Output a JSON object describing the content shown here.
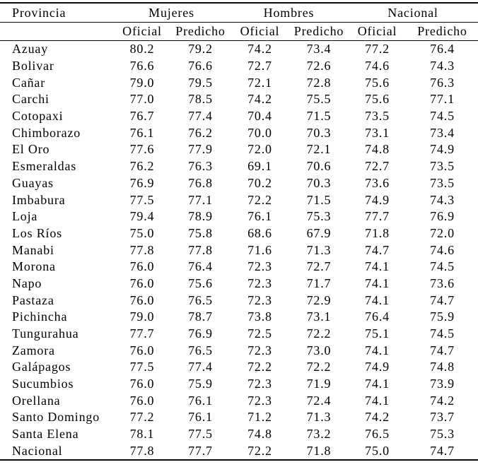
{
  "colors": {
    "background": "#ffffff",
    "text": "#000000",
    "rule": "#0a0a0a"
  },
  "table": {
    "corner_header": "Provincia",
    "groups": [
      "Mujeres",
      "Hombres",
      "Nacional"
    ],
    "subheaders": [
      "Oficial",
      "Predicho",
      "Oficial",
      "Predicho",
      "Oficial",
      "Predicho"
    ],
    "rows": [
      {
        "provincia": "Azuay",
        "values": [
          "80.2",
          "79.2",
          "74.2",
          "73.4",
          "77.2",
          "76.4"
        ]
      },
      {
        "provincia": "Bolivar",
        "values": [
          "76.6",
          "76.6",
          "72.7",
          "72.6",
          "74.6",
          "74.3"
        ]
      },
      {
        "provincia": "Cañar",
        "values": [
          "79.0",
          "79.5",
          "72.1",
          "72.8",
          "75.6",
          "76.3"
        ]
      },
      {
        "provincia": "Carchi",
        "values": [
          "77.0",
          "78.5",
          "74.2",
          "75.5",
          "75.6",
          "77.1"
        ]
      },
      {
        "provincia": "Cotopaxi",
        "values": [
          "76.7",
          "77.4",
          "70.4",
          "71.5",
          "73.5",
          "74.5"
        ]
      },
      {
        "provincia": "Chimborazo",
        "values": [
          "76.1",
          "76.2",
          "70.0",
          "70.3",
          "73.1",
          "73.4"
        ]
      },
      {
        "provincia": "El Oro",
        "values": [
          "77.6",
          "77.9",
          "72.0",
          "72.1",
          "74.8",
          "74.9"
        ]
      },
      {
        "provincia": "Esmeraldas",
        "values": [
          "76.2",
          "76.3",
          "69.1",
          "70.6",
          "72.7",
          "73.5"
        ]
      },
      {
        "provincia": "Guayas",
        "values": [
          "76.9",
          "76.8",
          "70.2",
          "70.3",
          "73.6",
          "73.5"
        ]
      },
      {
        "provincia": "Imbabura",
        "values": [
          "77.5",
          "77.1",
          "72.2",
          "71.5",
          "74.9",
          "74.3"
        ]
      },
      {
        "provincia": "Loja",
        "values": [
          "79.4",
          "78.9",
          "76.1",
          "75.3",
          "77.7",
          "76.9"
        ]
      },
      {
        "provincia": "Los Ríos",
        "values": [
          "75.0",
          "75.8",
          "68.6",
          "67.9",
          "71.8",
          "72.0"
        ]
      },
      {
        "provincia": "Manabi",
        "values": [
          "77.8",
          "77.8",
          "71.6",
          "71.3",
          "74.7",
          "74.6"
        ]
      },
      {
        "provincia": "Morona",
        "values": [
          "76.0",
          "76.4",
          "72.3",
          "72.7",
          "74.1",
          "74.5"
        ]
      },
      {
        "provincia": "Napo",
        "values": [
          "76.0",
          "75.6",
          "72.3",
          "71.7",
          "74.1",
          "73.6"
        ]
      },
      {
        "provincia": "Pastaza",
        "values": [
          "76.0",
          "76.5",
          "72.3",
          "72.9",
          "74.1",
          "74.7"
        ]
      },
      {
        "provincia": "Pichincha",
        "values": [
          "79.0",
          "78.7",
          "73.8",
          "73.1",
          "76.4",
          "75.9"
        ]
      },
      {
        "provincia": "Tungurahua",
        "values": [
          "77.7",
          "76.9",
          "72.5",
          "72.2",
          "75.1",
          "74.5"
        ]
      },
      {
        "provincia": "Zamora",
        "values": [
          "76.0",
          "76.5",
          "72.3",
          "73.0",
          "74.1",
          "74.7"
        ]
      },
      {
        "provincia": "Galápagos",
        "values": [
          "77.5",
          "77.4",
          "72.2",
          "72.2",
          "74.9",
          "74.8"
        ]
      },
      {
        "provincia": "Sucumbios",
        "values": [
          "76.0",
          "75.9",
          "72.3",
          "71.9",
          "74.1",
          "73.9"
        ]
      },
      {
        "provincia": "Orellana",
        "values": [
          "76.0",
          "76.1",
          "72.3",
          "72.4",
          "74.1",
          "74.2"
        ]
      },
      {
        "provincia": "Santo Domingo",
        "values": [
          "77.2",
          "76.1",
          "71.2",
          "71.3",
          "74.2",
          "73.7"
        ]
      },
      {
        "provincia": "Santa Elena",
        "values": [
          "78.1",
          "77.5",
          "74.8",
          "73.2",
          "76.5",
          "75.3"
        ]
      },
      {
        "provincia": "Nacional",
        "values": [
          "77.8",
          "77.7",
          "72.2",
          "71.8",
          "75.0",
          "74.7"
        ]
      }
    ]
  }
}
